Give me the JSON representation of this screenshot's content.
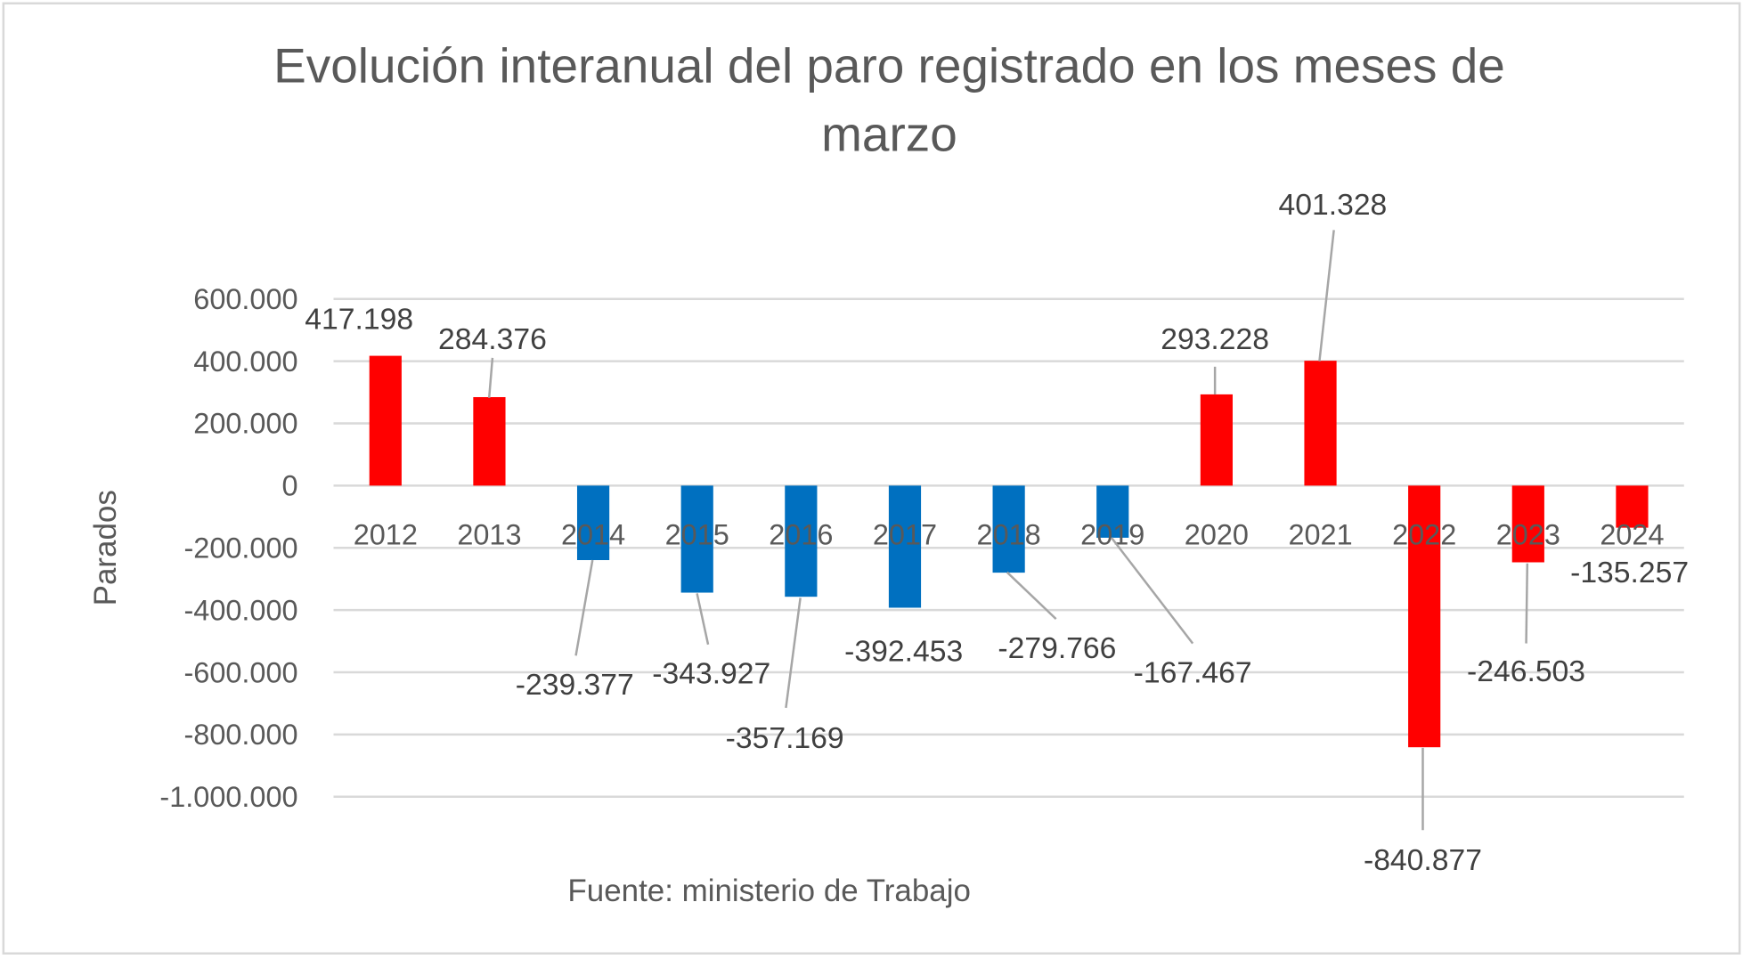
{
  "chart_data": {
    "type": "bar",
    "title": "Evolución interanual del paro registrado en los meses de marzo",
    "title_lines": [
      "Evolución interanual del paro registrado en los meses de",
      "marzo"
    ],
    "xlabel": "",
    "ylabel": "Parados",
    "source": "Fuente: ministerio de Trabajo",
    "categories": [
      "2012",
      "2013",
      "2014",
      "2015",
      "2016",
      "2017",
      "2018",
      "2019",
      "2020",
      "2021",
      "2022",
      "2023",
      "2024"
    ],
    "values": [
      417198,
      284376,
      -239377,
      -343927,
      -357169,
      -392453,
      -279766,
      -167467,
      293228,
      401328,
      -840877,
      -246503,
      -135257
    ],
    "data_labels": [
      "417.198",
      "284.376",
      "-239.377",
      "-343.927",
      "-357.169",
      "-392.453",
      "-279.766",
      "-167.467",
      "293.228",
      "401.328",
      "-840.877",
      "-246.503",
      "-135.257"
    ],
    "bar_colors": [
      "#FF0000",
      "#FF0000",
      "#0070C0",
      "#0070C0",
      "#0070C0",
      "#0070C0",
      "#0070C0",
      "#0070C0",
      "#FF0000",
      "#FF0000",
      "#FF0000",
      "#FF0000",
      "#FF0000"
    ],
    "ylim": [
      -1000000,
      600000
    ],
    "yticks": [
      600000,
      400000,
      200000,
      0,
      -200000,
      -400000,
      -600000,
      -800000,
      -1000000
    ],
    "ytick_labels": [
      "600.000",
      "400.000",
      "200.000",
      "0",
      "-200.000",
      "-400.000",
      "-600.000",
      "-800.000",
      "-1.000.000"
    ],
    "grid": true,
    "legend": "none"
  }
}
